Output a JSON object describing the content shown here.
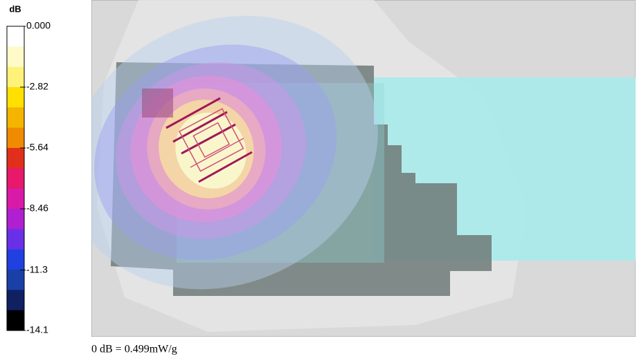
{
  "chart_data": {
    "type": "heatmap",
    "colorbar_label": "dB",
    "clim": [
      -14.1,
      0
    ],
    "colorbar_ticks": [
      {
        "value": 0,
        "label": "0.000"
      },
      -2.82,
      -5.64,
      -8.46,
      -11.3,
      -14.1
    ],
    "colors": [
      "#ffffff",
      "#fffbc8",
      "#fff27a",
      "#ffe000",
      "#f4b400",
      "#f08a00",
      "#e0301c",
      "#e8186a",
      "#d81aa8",
      "#b020d0",
      "#6a30e8",
      "#2040e0",
      "#1a40a8",
      "#102060",
      "#000000"
    ],
    "caption": "0 dB = 0.499mW/g"
  }
}
